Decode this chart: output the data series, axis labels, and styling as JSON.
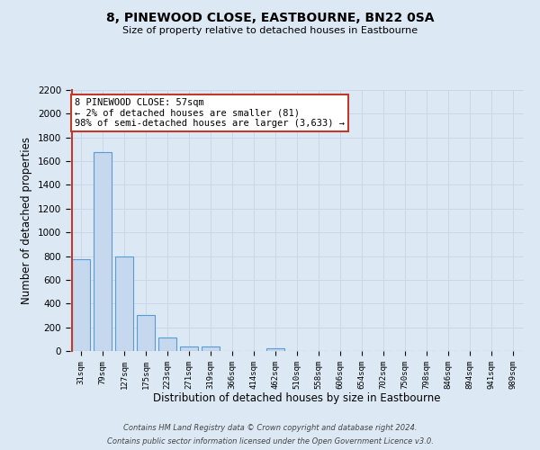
{
  "title": "8, PINEWOOD CLOSE, EASTBOURNE, BN22 0SA",
  "subtitle": "Size of property relative to detached houses in Eastbourne",
  "xlabel": "Distribution of detached houses by size in Eastbourne",
  "ylabel": "Number of detached properties",
  "categories": [
    "31sqm",
    "79sqm",
    "127sqm",
    "175sqm",
    "223sqm",
    "271sqm",
    "319sqm",
    "366sqm",
    "414sqm",
    "462sqm",
    "510sqm",
    "558sqm",
    "606sqm",
    "654sqm",
    "702sqm",
    "750sqm",
    "798sqm",
    "846sqm",
    "894sqm",
    "941sqm",
    "989sqm"
  ],
  "values": [
    775,
    1680,
    795,
    300,
    112,
    38,
    38,
    0,
    0,
    25,
    0,
    0,
    0,
    0,
    0,
    0,
    0,
    0,
    0,
    0,
    0
  ],
  "bar_color": "#c5d8ed",
  "bar_edge_color": "#5b9bd5",
  "bar_edge_width": 0.8,
  "vline_color": "#c0392b",
  "annotation_title": "8 PINEWOOD CLOSE: 57sqm",
  "annotation_line1": "← 2% of detached houses are smaller (81)",
  "annotation_line2": "98% of semi-detached houses are larger (3,633) →",
  "annotation_box_color": "#ffffff",
  "annotation_box_edge_color": "#c0392b",
  "ylim": [
    0,
    2200
  ],
  "yticks": [
    0,
    200,
    400,
    600,
    800,
    1000,
    1200,
    1400,
    1600,
    1800,
    2000,
    2200
  ],
  "grid_color": "#c8d8e8",
  "background_color": "#dce9f5",
  "footer_line1": "Contains HM Land Registry data © Crown copyright and database right 2024.",
  "footer_line2": "Contains public sector information licensed under the Open Government Licence v3.0."
}
